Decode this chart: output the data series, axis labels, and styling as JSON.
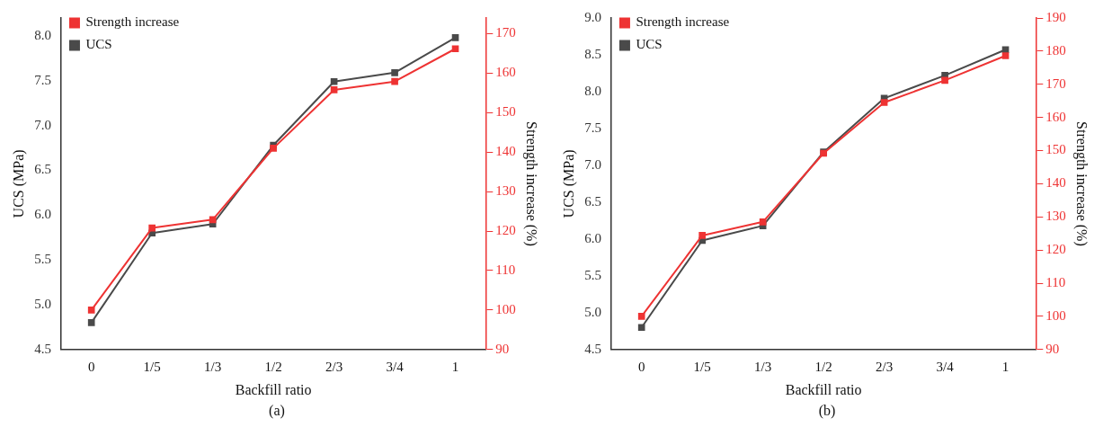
{
  "chart_data": [
    {
      "type": "line",
      "xlabel": "Backfill ratio",
      "ylabel": "UCS (MPa)",
      "y2label": "Strength increase (%)",
      "annotations": [
        "(a)"
      ],
      "categories": [
        "0",
        "1/5",
        "1/3",
        "1/2",
        "2/3",
        "3/4",
        "1"
      ],
      "series": [
        {
          "name": "UCS",
          "color": "#4a4a4a",
          "values": [
            4.8,
            5.8,
            5.9,
            6.78,
            7.49,
            7.59,
            7.98
          ]
        },
        {
          "name": "Strength increase",
          "color": "#ee3333",
          "axis": "y2",
          "values": [
            100,
            120.8,
            122.9,
            141,
            155.8,
            157.9,
            166.2
          ]
        }
      ],
      "ylim": [
        4.5,
        8.2
      ],
      "yticks": [
        4.5,
        {
          "value": 5,
          "label": "5.0"
        },
        5.5,
        {
          "value": 6,
          "label": "6.0"
        },
        6.5,
        {
          "value": 7,
          "label": "7.0"
        },
        7.5,
        {
          "value": 8,
          "label": "8.0"
        }
      ],
      "y2lim": [
        90,
        174
      ],
      "y2ticks": [
        90,
        100,
        110,
        120,
        130,
        140,
        150,
        160,
        170
      ],
      "legend": "top left",
      "marker": "square",
      "grid": false
    },
    {
      "type": "line",
      "xlabel": "Backfill ratio",
      "ylabel": "UCS (MPa)",
      "y2label": "Strength increase (%)",
      "annotations": [
        "(b)"
      ],
      "categories": [
        "0",
        "1/5",
        "1/3",
        "1/2",
        "2/3",
        "3/4",
        "1"
      ],
      "series": [
        {
          "name": "UCS",
          "color": "#4a4a4a",
          "values": [
            4.8,
            5.98,
            6.18,
            7.18,
            7.91,
            8.22,
            8.57
          ]
        },
        {
          "name": "Strength increase",
          "color": "#ee3333",
          "axis": "y2",
          "values": [
            100,
            124.4,
            128.5,
            149.2,
            164.5,
            171.2,
            178.6
          ]
        }
      ],
      "ylim": [
        4.5,
        9.0
      ],
      "yticks": [
        4.5,
        {
          "value": 5,
          "label": "5.0"
        },
        5.5,
        {
          "value": 6,
          "label": "6.0"
        },
        6.5,
        {
          "value": 7,
          "label": "7.0"
        },
        7.5,
        {
          "value": 8,
          "label": "8.0"
        },
        8.5,
        {
          "value": 9,
          "label": "9.0"
        }
      ],
      "y2lim": [
        90,
        190
      ],
      "y2ticks": [
        90,
        100,
        110,
        120,
        130,
        140,
        150,
        160,
        170,
        180,
        190
      ],
      "legend": "top left",
      "marker": "square",
      "grid": false
    }
  ]
}
